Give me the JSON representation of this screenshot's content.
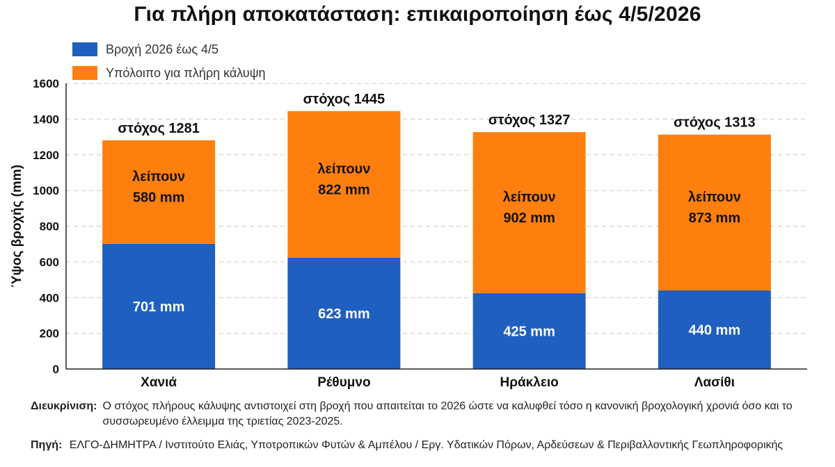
{
  "chart_data": {
    "type": "bar",
    "stacked": true,
    "title": "Για πλήρη αποκατάσταση: επικαιροποίηση έως 4/5/2026",
    "ylabel": "Ύψος βροχής (mm)",
    "ylim": [
      0,
      1600
    ],
    "yticks": [
      "0",
      "200",
      "400",
      "600",
      "800",
      "1000",
      "1200",
      "1400",
      "1600"
    ],
    "grid": true,
    "legend_position": "top-left",
    "categories": [
      "Χανιά",
      "Ρέθυμνο",
      "Ηράκλειο",
      "Λασίθι"
    ],
    "series": [
      {
        "name": "Βροχή 2026 έως 4/5",
        "color": "#1f5fbf",
        "values": [
          701,
          623,
          425,
          440
        ],
        "labels": [
          "701 mm",
          "623 mm",
          "425 mm",
          "440 mm"
        ]
      },
      {
        "name": "Υπόλοιπο για πλήρη κάλυψη",
        "color": "#ff7f0e",
        "values": [
          580,
          822,
          902,
          873
        ],
        "labels": [
          "λείπουν\n580 mm",
          "λείπουν\n822 mm",
          "λείπουν\n902 mm",
          "λείπουν\n873 mm"
        ]
      }
    ],
    "target_labels": [
      "στόχος 1281",
      "στόχος 1445",
      "στόχος 1327",
      "στόχος 1313"
    ]
  },
  "note": {
    "label": "Διευκρίνιση:",
    "text": "Ο στόχος πλήρους κάλυψης αντιστοιχεί στη βροχή που απαιτείται το 2026 ώστε να καλυφθεί τόσο η κανονική βροχολογική χρονιά όσο και το συσσωρευμένο έλλειμμα της τριετίας 2023-2025."
  },
  "source": {
    "label": "Πηγή:",
    "text": "ΕΛΓΟ-ΔΗΜΗΤΡΑ / Ινστιτούτο Ελιάς, Υποτροπικών Φυτών & Αμπέλου / Εργ. Υδατικών Πόρων, Αρδεύσεων & Περιβαλλοντικής Γεωπληροφορικής"
  }
}
